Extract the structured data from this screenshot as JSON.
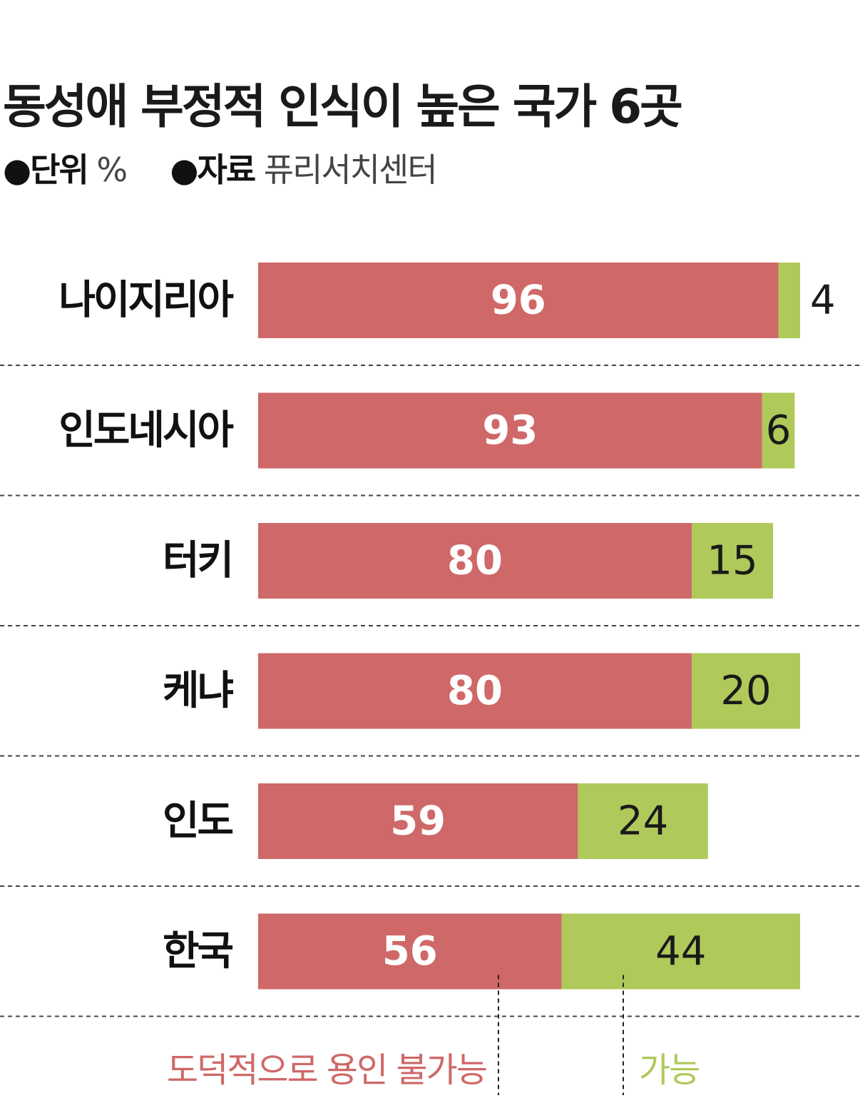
{
  "header": {
    "title": "동성애 부정적 인식이 높은 국가 6곳",
    "unit_key": "●단위",
    "unit_val": "%",
    "source_key": "●자료",
    "source_val": "퓨리서치센터"
  },
  "colors": {
    "negative": "#cf6868",
    "positive": "#afc95a",
    "divider": "#444444"
  },
  "chart_data": {
    "type": "bar",
    "orientation": "horizontal",
    "stacked": true,
    "categories": [
      "나이지리아",
      "인도네시아",
      "터키",
      "케냐",
      "인도",
      "한국"
    ],
    "series": [
      {
        "name": "도덕적으로 용인 불가능",
        "values": [
          96,
          93,
          80,
          80,
          59,
          56
        ]
      },
      {
        "name": "가능",
        "values": [
          4,
          6,
          15,
          20,
          24,
          44
        ]
      }
    ],
    "title": "동성애 부정적 인식이 높은 국가 6곳",
    "unit": "%",
    "xlim": [
      0,
      100
    ],
    "grid": false
  }
}
